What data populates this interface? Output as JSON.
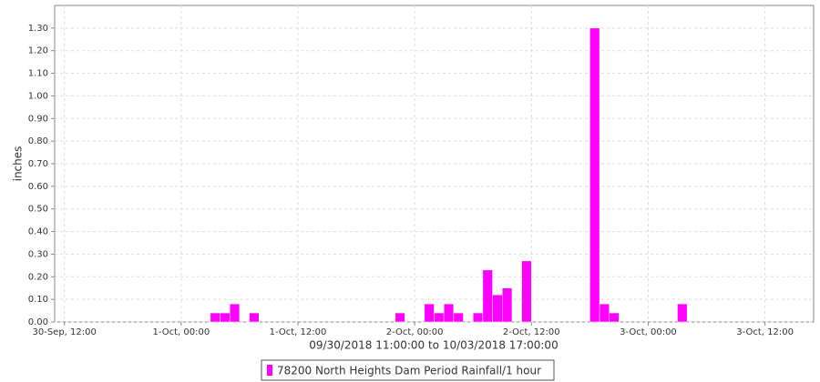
{
  "chart_data": {
    "type": "bar",
    "ylabel": "inches",
    "xlabel": "09/30/2018 11:00:00 to 10/03/2018 17:00:00",
    "x": [
      "2018-10-01T03:00",
      "2018-10-01T04:00",
      "2018-10-01T05:00",
      "2018-10-01T07:00",
      "2018-10-01T22:00",
      "2018-10-02T01:00",
      "2018-10-02T02:00",
      "2018-10-02T03:00",
      "2018-10-02T04:00",
      "2018-10-02T06:00",
      "2018-10-02T07:00",
      "2018-10-02T08:00",
      "2018-10-02T09:00",
      "2018-10-02T11:00",
      "2018-10-02T18:00",
      "2018-10-02T19:00",
      "2018-10-02T20:00",
      "2018-10-03T03:00"
    ],
    "series": [
      {
        "name": "78200 North Heights Dam Period Rainfall/1 hour",
        "color": "#ff00ff",
        "values": [
          0.04,
          0.04,
          0.08,
          0.04,
          0.04,
          0.08,
          0.04,
          0.08,
          0.04,
          0.04,
          0.23,
          0.12,
          0.15,
          0.27,
          1.3,
          0.08,
          0.04,
          0.08
        ]
      }
    ],
    "xlim": [
      "2018-09-30T11:00",
      "2018-10-03T17:00"
    ],
    "xticks": [
      {
        "value": "2018-09-30T12:00",
        "label": "30-Sep, 12:00"
      },
      {
        "value": "2018-10-01T00:00",
        "label": "1-Oct, 00:00"
      },
      {
        "value": "2018-10-01T12:00",
        "label": "1-Oct, 12:00"
      },
      {
        "value": "2018-10-02T00:00",
        "label": "2-Oct, 00:00"
      },
      {
        "value": "2018-10-02T12:00",
        "label": "2-Oct, 12:00"
      },
      {
        "value": "2018-10-03T00:00",
        "label": "3-Oct, 00:00"
      },
      {
        "value": "2018-10-03T12:00",
        "label": "3-Oct, 12:00"
      }
    ],
    "ylim": [
      0,
      1.4
    ],
    "yticks": [
      {
        "value": 0,
        "label": "0.00"
      },
      {
        "value": 0.1,
        "label": "0.10"
      },
      {
        "value": 0.2,
        "label": "0.20"
      },
      {
        "value": 0.3,
        "label": "0.30"
      },
      {
        "value": 0.4,
        "label": "0.40"
      },
      {
        "value": 0.5,
        "label": "0.50"
      },
      {
        "value": 0.6,
        "label": "0.60"
      },
      {
        "value": 0.7,
        "label": "0.70"
      },
      {
        "value": 0.8,
        "label": "0.80"
      },
      {
        "value": 0.9,
        "label": "0.90"
      },
      {
        "value": 1.0,
        "label": "1.00"
      },
      {
        "value": 1.1,
        "label": "1.10"
      },
      {
        "value": 1.2,
        "label": "1.20"
      },
      {
        "value": 1.3,
        "label": "1.30"
      }
    ],
    "grid": true,
    "legend": "bottom"
  }
}
